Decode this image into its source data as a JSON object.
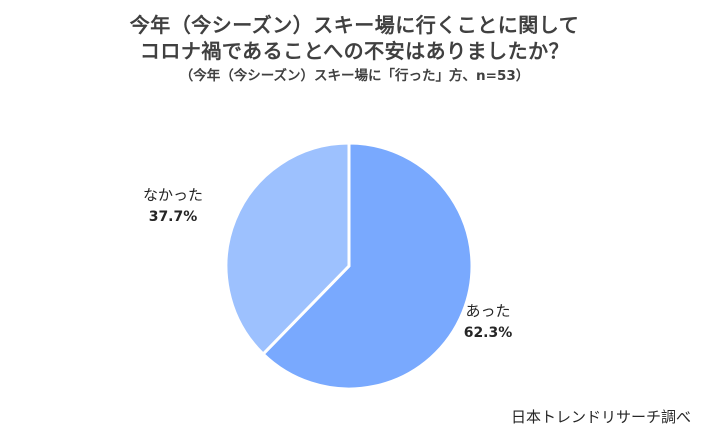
{
  "chart_data": {
    "type": "pie",
    "title_lines": [
      "今年（今シーズン）スキー場に行くことに関して",
      "コロナ禍であることへの不安はありましたか？"
    ],
    "subtitle": "（今年（今シーズン）スキー場に「行った」方、n=53）",
    "slices": [
      {
        "label": "あった",
        "value": 62.3,
        "value_label": "62.3%",
        "color": "#79A9FE"
      },
      {
        "label": "なかった",
        "value": 37.7,
        "value_label": "37.7%",
        "color": "#9DC1FE"
      }
    ]
  },
  "source": "日本トレンドリサーチ調べ"
}
